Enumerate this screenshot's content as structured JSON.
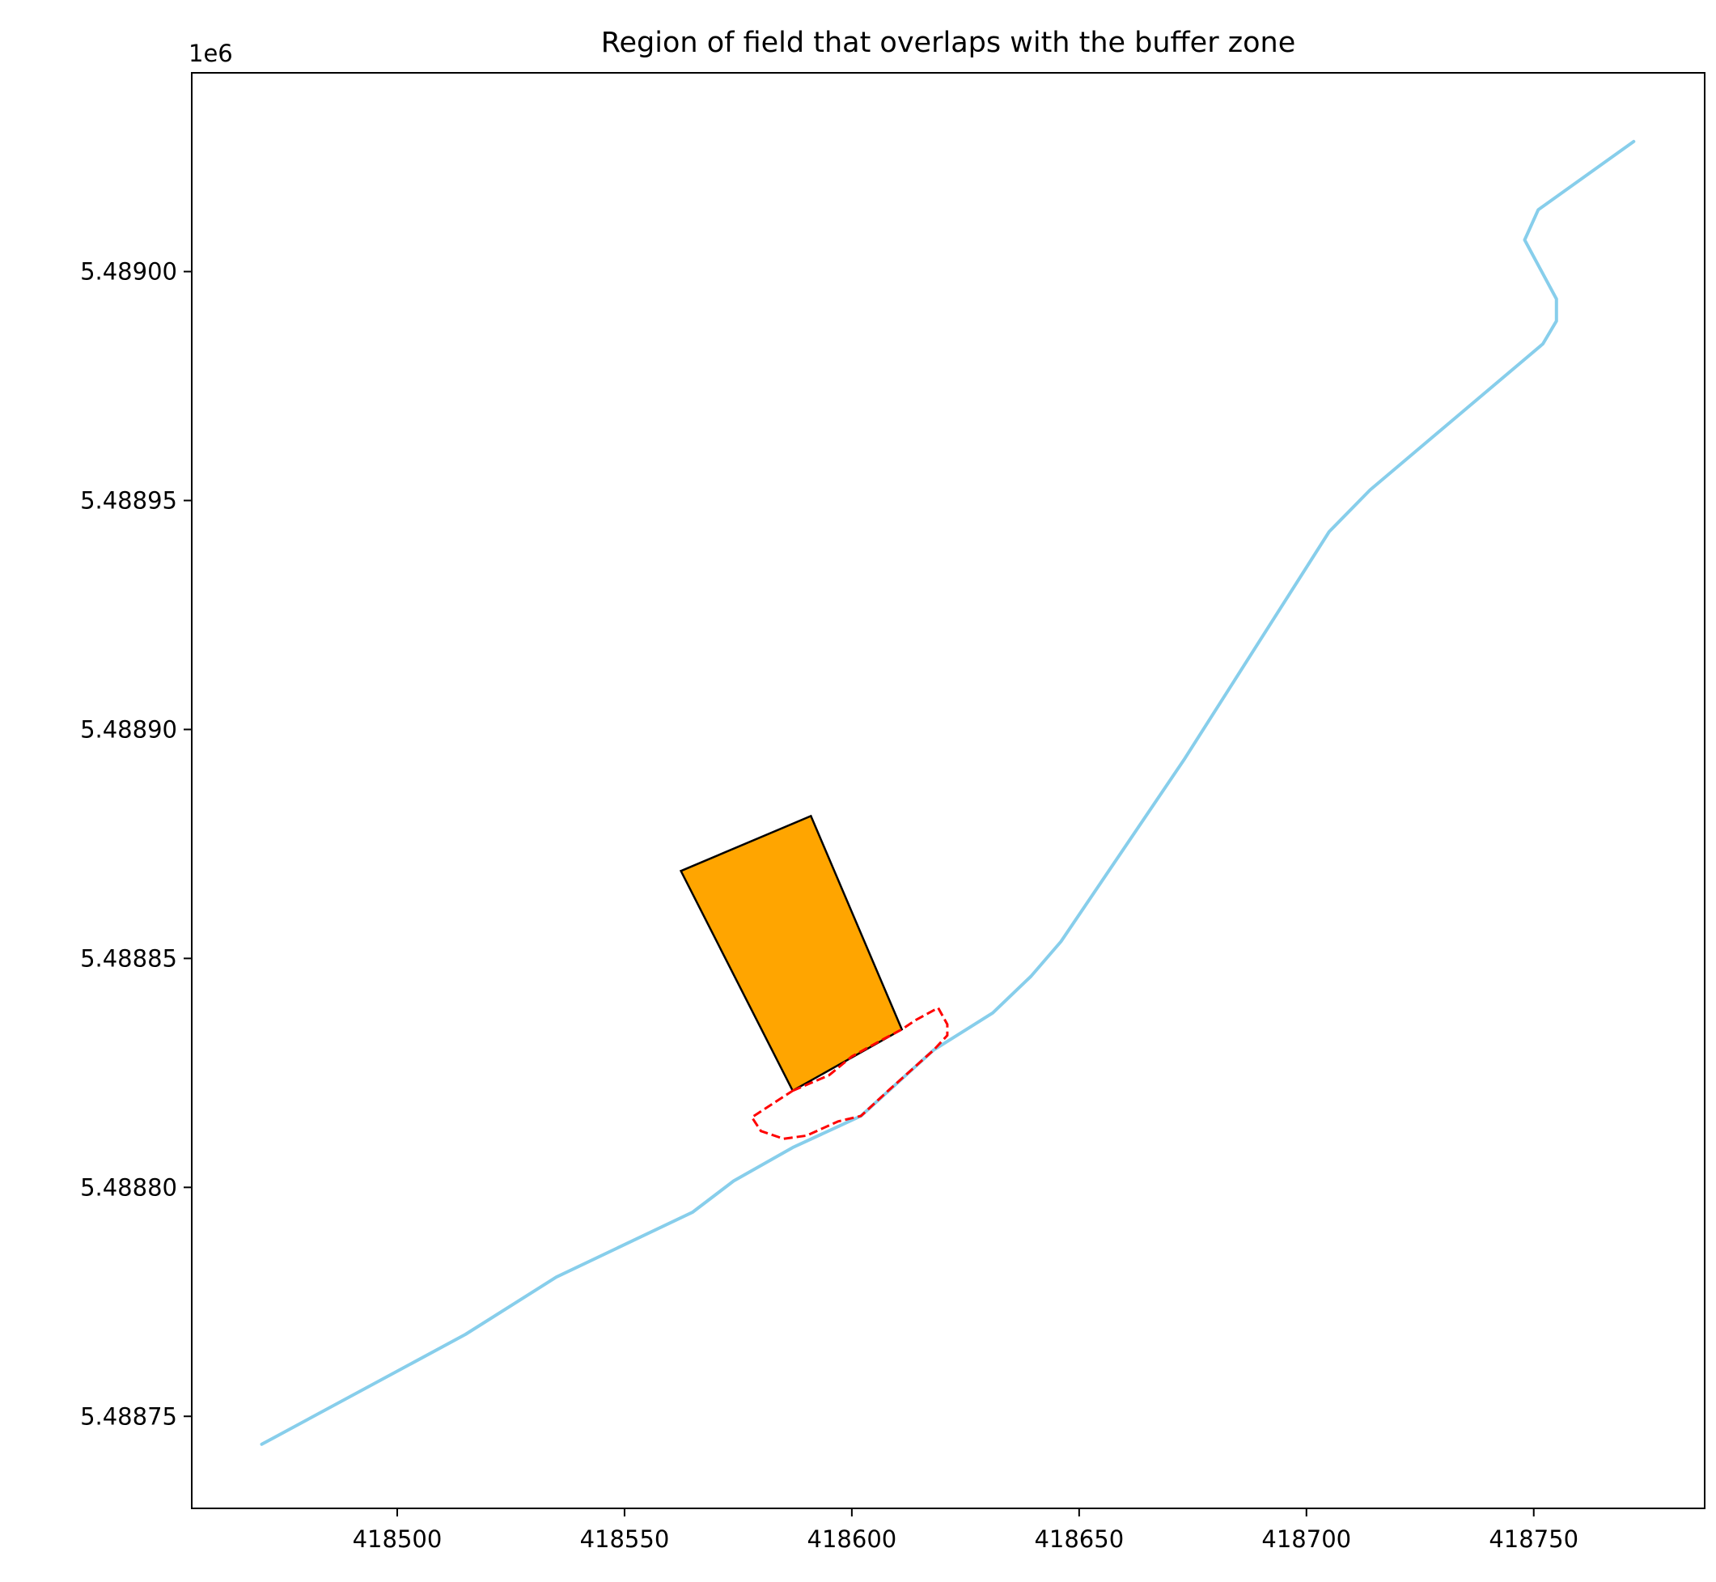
{
  "chart_data": {
    "type": "line",
    "title": "Region of field that overlaps with the buffer zone",
    "xlabel": "",
    "ylabel": "",
    "y_offset_label": "1e6",
    "xlim": [
      418454.8,
      418787.6
    ],
    "ylim": [
      5488729.9,
      5489043.4
    ],
    "x_ticks": [
      418500,
      418550,
      418600,
      418650,
      418700,
      418750
    ],
    "x_tick_labels": [
      "418500",
      "418550",
      "418600",
      "418650",
      "418700",
      "418750"
    ],
    "y_ticks": [
      5488750,
      5488800,
      5488850,
      5488900,
      5488950,
      5489000
    ],
    "y_tick_labels": [
      "5.48875",
      "5.48880",
      "5.48885",
      "5.48890",
      "5.48895",
      "5.48900"
    ],
    "grid": false,
    "series": [
      {
        "kind": "line",
        "color": "#87ceeb",
        "points": [
          [
            418470.2,
            5488743.9
          ],
          [
            418515.0,
            5488767.9
          ],
          [
            418535.0,
            5488780.4
          ],
          [
            418565.0,
            5488794.6
          ],
          [
            418574.0,
            5488801.4
          ],
          [
            418587.0,
            5488808.7
          ],
          [
            418602.0,
            5488815.6
          ],
          [
            418618.0,
            5488830.0
          ],
          [
            418631.0,
            5488838.1
          ],
          [
            418639.4,
            5488846.1
          ],
          [
            418646.0,
            5488853.7
          ],
          [
            418673.0,
            5488893.3
          ],
          [
            418705.0,
            5488943.2
          ],
          [
            418714.0,
            5488952.3
          ],
          [
            418752.0,
            5488984.2
          ],
          [
            418755.0,
            5488989.2
          ],
          [
            418755.0,
            5488994.0
          ],
          [
            418748.0,
            5489006.9
          ],
          [
            418751.0,
            5489013.5
          ],
          [
            418772.0,
            5489028.4
          ]
        ]
      },
      {
        "kind": "polygon",
        "fill": "#ffa500",
        "stroke": "#000000",
        "points": [
          [
            418562.4,
            5488869.1
          ],
          [
            418591.0,
            5488881.1
          ],
          [
            418611.0,
            5488834.5
          ],
          [
            418587.0,
            5488821.1
          ],
          [
            418562.4,
            5488869.1
          ]
        ]
      },
      {
        "kind": "polygon",
        "fill": "none",
        "stroke": "#ff0000",
        "dashed": true,
        "points": [
          [
            418587.0,
            5488821.1
          ],
          [
            418595.0,
            5488824.5
          ],
          [
            418600.0,
            5488828.6
          ],
          [
            418607.0,
            5488832.4
          ],
          [
            418611.0,
            5488834.5
          ],
          [
            418614.0,
            5488836.5
          ],
          [
            418619.0,
            5488839.2
          ],
          [
            418621.0,
            5488835.6
          ],
          [
            418621.0,
            5488833.2
          ],
          [
            418618.0,
            5488830.0
          ],
          [
            418608.0,
            5488821.1
          ],
          [
            418602.0,
            5488815.6
          ],
          [
            418597.0,
            5488814.4
          ],
          [
            418590.0,
            5488811.3
          ],
          [
            418585.0,
            5488810.6
          ],
          [
            418580.0,
            5488812.3
          ],
          [
            418578.0,
            5488815.3
          ],
          [
            418587.0,
            5488821.1
          ]
        ]
      }
    ]
  }
}
